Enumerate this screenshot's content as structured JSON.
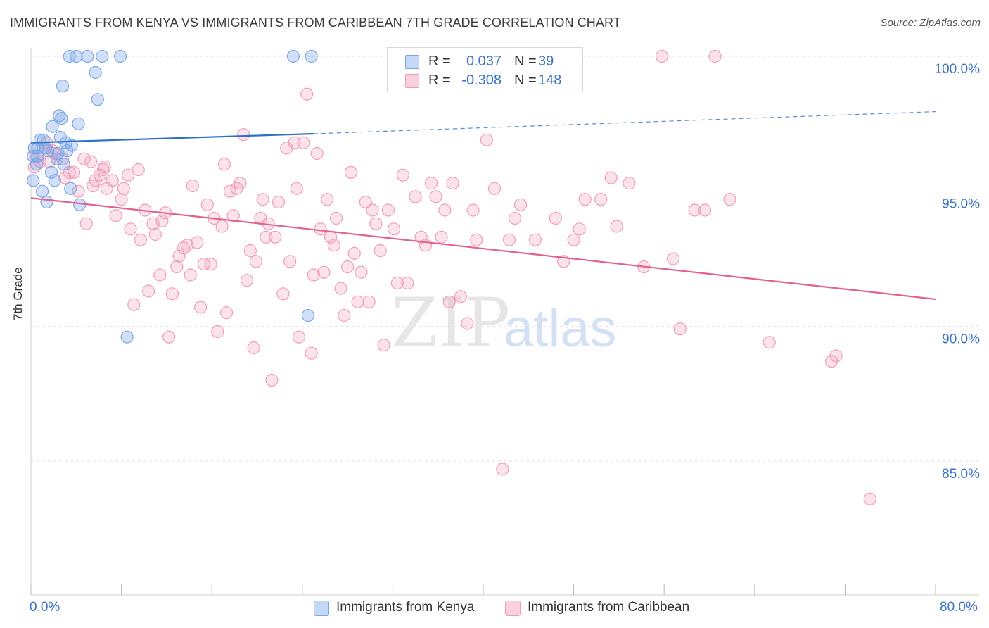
{
  "title": "IMMIGRANTS FROM KENYA VS IMMIGRANTS FROM CARIBBEAN 7TH GRADE CORRELATION CHART",
  "source": "Source: ZipAtlas.com",
  "watermark": {
    "zip": "ZIP",
    "atlas": "atlas"
  },
  "legend": {
    "kenya": {
      "r_label": "R =",
      "r_value": "0.037",
      "n_label": "N =",
      "n_value": "39"
    },
    "caribbean": {
      "r_label": "R =",
      "r_value": "-0.308",
      "n_label": "N =",
      "n_value": "148"
    }
  },
  "bottom_legend": {
    "kenya": "Immigrants from Kenya",
    "caribbean": "Immigrants from Caribbean"
  },
  "colors": {
    "kenya": "#7aa6e8",
    "kenya_line": "#2f6fcc",
    "caribbean": "#f29bb8",
    "caribbean_line": "#e3608f",
    "axis_text": "#3a72c8"
  },
  "chart_data": {
    "type": "scatter",
    "title": "IMMIGRANTS FROM KENYA VS IMMIGRANTS FROM CARIBBEAN 7TH GRADE CORRELATION CHART",
    "xlabel": "",
    "ylabel": "7th Grade",
    "xlim": [
      0,
      80
    ],
    "ylim": [
      80.5,
      100.6
    ],
    "x_tick_labels": {
      "left": "0.0%",
      "right": "80.0%"
    },
    "y_ticks": [
      {
        "value": 100,
        "label": "100.0%"
      },
      {
        "value": 95,
        "label": "95.0%"
      },
      {
        "value": 90,
        "label": "90.0%"
      },
      {
        "value": 85,
        "label": "85.0%"
      }
    ],
    "grid": true,
    "series": [
      {
        "name": "Immigrants from Kenya",
        "trend": {
          "x0": 0,
          "y0": 96.8,
          "x1": 25,
          "y1": 97.13,
          "dashed_to_x": 80,
          "dashed_to_y": 97.95
        },
        "points": [
          [
            0.2,
            95.4
          ],
          [
            0.2,
            96.3
          ],
          [
            0.3,
            96.6
          ],
          [
            0.6,
            96.6
          ],
          [
            0.6,
            96.3
          ],
          [
            0.8,
            96.9
          ],
          [
            1.0,
            95.0
          ],
          [
            1.1,
            96.9
          ],
          [
            1.4,
            94.6
          ],
          [
            1.5,
            96.5
          ],
          [
            1.8,
            95.7
          ],
          [
            1.9,
            97.4
          ],
          [
            2.1,
            95.4
          ],
          [
            2.3,
            96.2
          ],
          [
            2.5,
            97.8
          ],
          [
            2.6,
            97.0
          ],
          [
            2.7,
            97.7
          ],
          [
            2.9,
            96.0
          ],
          [
            3.1,
            96.8
          ],
          [
            3.2,
            96.5
          ],
          [
            2.8,
            98.9
          ],
          [
            3.5,
            95.1
          ],
          [
            3.6,
            96.7
          ],
          [
            3.4,
            100.0
          ],
          [
            4.0,
            100.0
          ],
          [
            4.2,
            97.5
          ],
          [
            4.3,
            94.5
          ],
          [
            5.0,
            100.0
          ],
          [
            5.7,
            99.4
          ],
          [
            5.9,
            98.4
          ],
          [
            6.3,
            100.0
          ],
          [
            7.9,
            100.0
          ],
          [
            8.5,
            89.6
          ],
          [
            23.2,
            100.0
          ],
          [
            24.8,
            100.0
          ],
          [
            24.5,
            90.4
          ],
          [
            0.5,
            96.0
          ],
          [
            1.3,
            96.6
          ],
          [
            2.4,
            96.4
          ]
        ]
      },
      {
        "name": "Immigrants from Caribbean",
        "trend": {
          "x0": 0,
          "y0": 94.75,
          "x1": 80,
          "y1": 91.0
        },
        "points": [
          [
            0.3,
            95.9
          ],
          [
            0.5,
            96.3
          ],
          [
            0.8,
            96.1
          ],
          [
            1.1,
            96.6
          ],
          [
            1.4,
            96.8
          ],
          [
            1.6,
            96.1
          ],
          [
            1.9,
            96.5
          ],
          [
            2.1,
            96.4
          ],
          [
            2.8,
            96.2
          ],
          [
            3.0,
            95.5
          ],
          [
            3.4,
            95.7
          ],
          [
            3.8,
            95.7
          ],
          [
            4.2,
            95.0
          ],
          [
            4.7,
            96.2
          ],
          [
            4.9,
            93.8
          ],
          [
            5.3,
            96.1
          ],
          [
            5.5,
            95.2
          ],
          [
            5.7,
            95.4
          ],
          [
            6.1,
            95.6
          ],
          [
            6.4,
            95.8
          ],
          [
            6.5,
            95.9
          ],
          [
            6.7,
            95.1
          ],
          [
            7.2,
            95.4
          ],
          [
            7.5,
            94.1
          ],
          [
            8.0,
            94.7
          ],
          [
            8.2,
            95.1
          ],
          [
            8.6,
            95.6
          ],
          [
            8.8,
            93.6
          ],
          [
            9.1,
            90.8
          ],
          [
            9.5,
            95.8
          ],
          [
            9.7,
            93.2
          ],
          [
            10.1,
            94.3
          ],
          [
            10.4,
            91.3
          ],
          [
            10.8,
            93.8
          ],
          [
            11.0,
            93.4
          ],
          [
            11.4,
            91.9
          ],
          [
            11.6,
            93.9
          ],
          [
            11.9,
            94.2
          ],
          [
            12.2,
            89.6
          ],
          [
            12.5,
            91.2
          ],
          [
            12.9,
            92.2
          ],
          [
            13.1,
            92.6
          ],
          [
            13.5,
            92.9
          ],
          [
            13.8,
            93.0
          ],
          [
            14.1,
            91.9
          ],
          [
            14.3,
            95.2
          ],
          [
            14.7,
            93.1
          ],
          [
            15.0,
            90.7
          ],
          [
            15.3,
            92.3
          ],
          [
            15.6,
            94.5
          ],
          [
            15.9,
            92.3
          ],
          [
            16.2,
            94.0
          ],
          [
            16.5,
            89.8
          ],
          [
            16.9,
            93.7
          ],
          [
            17.1,
            96.0
          ],
          [
            17.3,
            90.5
          ],
          [
            17.6,
            95.0
          ],
          [
            17.9,
            94.1
          ],
          [
            18.2,
            95.1
          ],
          [
            18.5,
            95.3
          ],
          [
            18.8,
            97.1
          ],
          [
            19.1,
            91.7
          ],
          [
            19.4,
            92.8
          ],
          [
            19.7,
            89.2
          ],
          [
            19.9,
            92.4
          ],
          [
            20.3,
            94.0
          ],
          [
            20.5,
            94.7
          ],
          [
            20.8,
            93.3
          ],
          [
            21.0,
            93.8
          ],
          [
            21.3,
            88.0
          ],
          [
            21.6,
            93.3
          ],
          [
            21.9,
            94.6
          ],
          [
            22.3,
            91.2
          ],
          [
            22.6,
            96.6
          ],
          [
            22.9,
            92.4
          ],
          [
            23.3,
            96.8
          ],
          [
            23.5,
            95.1
          ],
          [
            23.7,
            89.6
          ],
          [
            24.1,
            96.8
          ],
          [
            24.4,
            98.6
          ],
          [
            24.8,
            89.0
          ],
          [
            25.0,
            91.9
          ],
          [
            25.3,
            96.4
          ],
          [
            25.6,
            93.6
          ],
          [
            25.9,
            92.0
          ],
          [
            26.2,
            94.7
          ],
          [
            26.5,
            93.3
          ],
          [
            26.8,
            93.0
          ],
          [
            27.0,
            94.0
          ],
          [
            27.4,
            91.4
          ],
          [
            27.7,
            90.4
          ],
          [
            28.0,
            92.2
          ],
          [
            28.3,
            95.7
          ],
          [
            28.6,
            92.7
          ],
          [
            28.9,
            90.9
          ],
          [
            29.2,
            92.0
          ],
          [
            29.6,
            94.6
          ],
          [
            29.9,
            90.9
          ],
          [
            30.2,
            94.3
          ],
          [
            30.5,
            93.8
          ],
          [
            30.9,
            92.8
          ],
          [
            31.2,
            89.3
          ],
          [
            31.6,
            94.3
          ],
          [
            32.1,
            93.6
          ],
          [
            32.4,
            91.6
          ],
          [
            32.9,
            95.6
          ],
          [
            33.3,
            91.6
          ],
          [
            34.0,
            94.8
          ],
          [
            34.5,
            93.3
          ],
          [
            34.9,
            93.0
          ],
          [
            35.4,
            95.3
          ],
          [
            35.8,
            94.8
          ],
          [
            36.3,
            93.3
          ],
          [
            36.6,
            94.3
          ],
          [
            37.0,
            90.9
          ],
          [
            37.3,
            95.3
          ],
          [
            38.0,
            91.1
          ],
          [
            38.6,
            90.1
          ],
          [
            39.1,
            94.3
          ],
          [
            39.4,
            93.2
          ],
          [
            40.3,
            96.9
          ],
          [
            41.0,
            95.1
          ],
          [
            41.7,
            84.7
          ],
          [
            42.3,
            93.2
          ],
          [
            42.8,
            94.0
          ],
          [
            43.3,
            94.5
          ],
          [
            44.6,
            93.2
          ],
          [
            46.4,
            94.0
          ],
          [
            47.1,
            92.4
          ],
          [
            48.0,
            93.2
          ],
          [
            48.5,
            93.6
          ],
          [
            49.0,
            94.7
          ],
          [
            50.4,
            94.7
          ],
          [
            51.3,
            95.5
          ],
          [
            51.8,
            93.7
          ],
          [
            52.9,
            95.3
          ],
          [
            54.2,
            92.2
          ],
          [
            55.8,
            100.0
          ],
          [
            56.8,
            92.5
          ],
          [
            57.4,
            89.9
          ],
          [
            58.7,
            94.3
          ],
          [
            59.6,
            94.3
          ],
          [
            60.5,
            100.0
          ],
          [
            61.8,
            94.7
          ],
          [
            70.8,
            88.7
          ],
          [
            71.2,
            88.9
          ],
          [
            74.2,
            83.6
          ],
          [
            65.3,
            89.4
          ]
        ]
      }
    ]
  }
}
